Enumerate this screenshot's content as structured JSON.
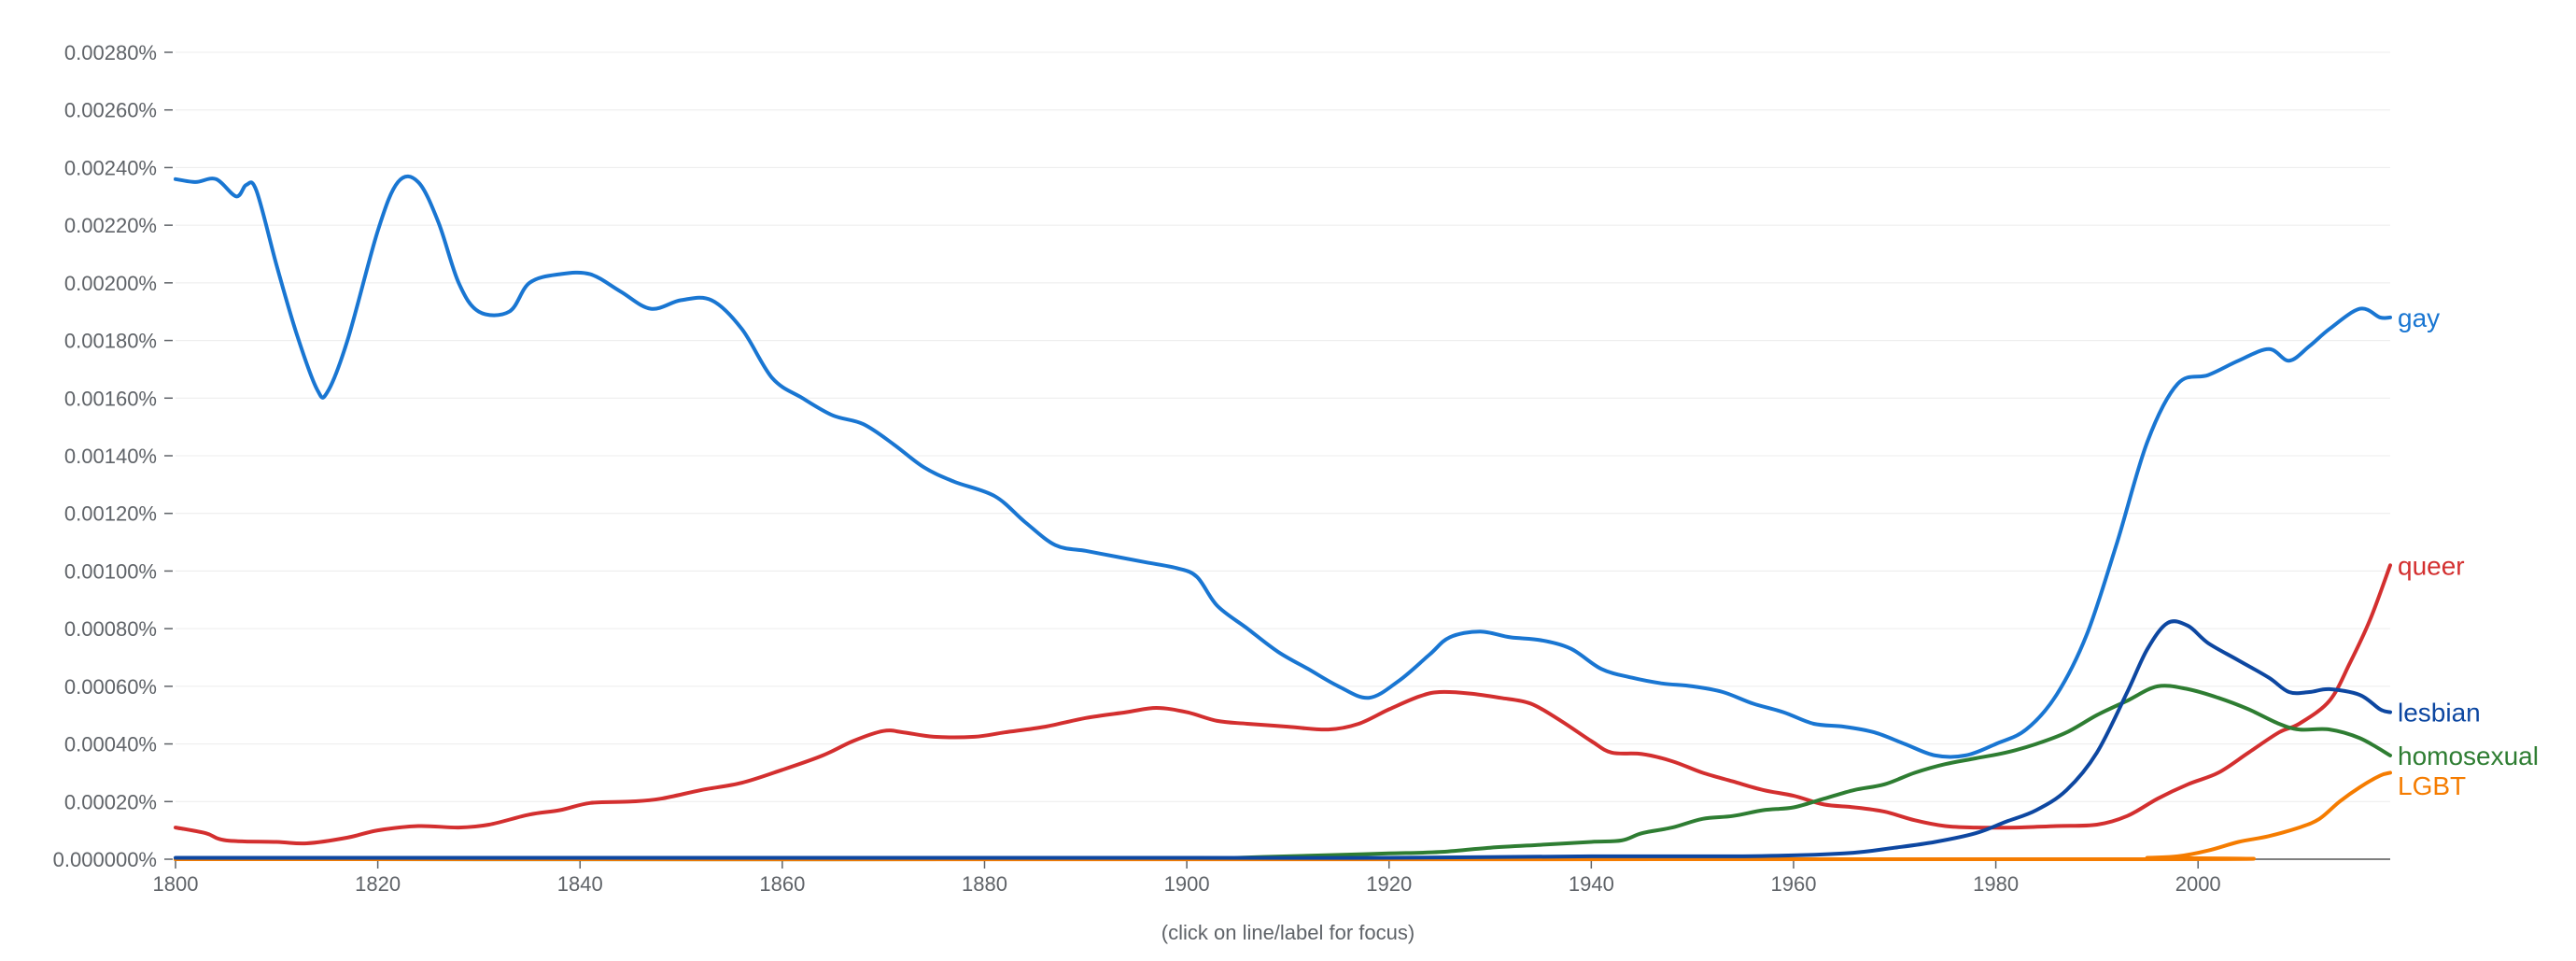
{
  "footer_note": "(click on line/label for focus)",
  "chart_data": {
    "type": "line",
    "x_ticks": [
      "1800",
      "1820",
      "1840",
      "1860",
      "1880",
      "1900",
      "1920",
      "1940",
      "1960",
      "1980",
      "2000"
    ],
    "y_ticks": [
      "0.000000%",
      "0.00020%",
      "0.00040%",
      "0.00060%",
      "0.00080%",
      "0.00100%",
      "0.00120%",
      "0.00140%",
      "0.00160%",
      "0.00180%",
      "0.00200%",
      "0.00220%",
      "0.00240%",
      "0.00260%",
      "0.00280%"
    ],
    "xlim": [
      1800,
      2019
    ],
    "ylim": [
      0,
      0.0028
    ],
    "grid": true,
    "series": [
      {
        "name": "gay",
        "color": "#1976d2",
        "points": [
          [
            1800,
            0.00236
          ],
          [
            1802,
            0.00235
          ],
          [
            1804,
            0.00236
          ],
          [
            1806,
            0.0023
          ],
          [
            1807,
            0.00234
          ],
          [
            1808,
            0.00232
          ],
          [
            1810,
            0.00206
          ],
          [
            1812,
            0.00182
          ],
          [
            1814,
            0.00163
          ],
          [
            1815,
            0.00162
          ],
          [
            1817,
            0.0018
          ],
          [
            1820,
            0.00218
          ],
          [
            1822,
            0.00235
          ],
          [
            1824,
            0.00235
          ],
          [
            1826,
            0.00221
          ],
          [
            1828,
            0.002
          ],
          [
            1830,
            0.0019
          ],
          [
            1833,
            0.0019
          ],
          [
            1835,
            0.002
          ],
          [
            1838,
            0.00203
          ],
          [
            1841,
            0.00203
          ],
          [
            1844,
            0.00197
          ],
          [
            1847,
            0.00191
          ],
          [
            1850,
            0.00194
          ],
          [
            1853,
            0.00194
          ],
          [
            1856,
            0.00184
          ],
          [
            1859,
            0.00167
          ],
          [
            1862,
            0.0016
          ],
          [
            1865,
            0.00154
          ],
          [
            1868,
            0.00151
          ],
          [
            1871,
            0.00144
          ],
          [
            1874,
            0.00136
          ],
          [
            1877,
            0.00131
          ],
          [
            1881,
            0.00126
          ],
          [
            1884,
            0.00117
          ],
          [
            1887,
            0.00109
          ],
          [
            1890,
            0.00107
          ],
          [
            1893,
            0.00105
          ],
          [
            1896,
            0.00103
          ],
          [
            1899,
            0.00101
          ],
          [
            1901,
            0.00098
          ],
          [
            1903,
            0.00088
          ],
          [
            1906,
            0.0008
          ],
          [
            1909,
            0.00072
          ],
          [
            1912,
            0.00066
          ],
          [
            1915,
            0.0006
          ],
          [
            1918,
            0.00056
          ],
          [
            1921,
            0.00062
          ],
          [
            1924,
            0.00071
          ],
          [
            1926,
            0.00077
          ],
          [
            1929,
            0.00079
          ],
          [
            1932,
            0.00077
          ],
          [
            1935,
            0.00076
          ],
          [
            1938,
            0.00073
          ],
          [
            1941,
            0.00066
          ],
          [
            1944,
            0.00063
          ],
          [
            1947,
            0.00061
          ],
          [
            1950,
            0.0006
          ],
          [
            1953,
            0.00058
          ],
          [
            1956,
            0.00054
          ],
          [
            1959,
            0.00051
          ],
          [
            1962,
            0.00047
          ],
          [
            1965,
            0.00046
          ],
          [
            1968,
            0.00044
          ],
          [
            1971,
            0.0004
          ],
          [
            1974,
            0.00036
          ],
          [
            1977,
            0.00036
          ],
          [
            1980,
            0.0004
          ],
          [
            1983,
            0.00045
          ],
          [
            1986,
            0.00057
          ],
          [
            1989,
            0.00078
          ],
          [
            1992,
            0.0011
          ],
          [
            1995,
            0.00145
          ],
          [
            1998,
            0.00165
          ],
          [
            2001,
            0.00168
          ],
          [
            2004,
            0.00173
          ],
          [
            2007,
            0.00177
          ],
          [
            2009,
            0.00173
          ],
          [
            2011,
            0.00178
          ],
          [
            2013,
            0.00184
          ],
          [
            2016,
            0.00191
          ],
          [
            2018,
            0.00188
          ],
          [
            2019,
            0.00188
          ]
        ]
      },
      {
        "name": "queer",
        "color": "#d32f2f",
        "points": [
          [
            1800,
            0.00011
          ],
          [
            1803,
            9e-05
          ],
          [
            1805,
            6.5e-05
          ],
          [
            1810,
            6e-05
          ],
          [
            1813,
            5.5e-05
          ],
          [
            1817,
            7.5e-05
          ],
          [
            1820,
            0.0001
          ],
          [
            1824,
            0.000115
          ],
          [
            1828,
            0.00011
          ],
          [
            1831,
            0.00012
          ],
          [
            1835,
            0.000155
          ],
          [
            1838,
            0.00017
          ],
          [
            1841,
            0.000195
          ],
          [
            1845,
            0.0002
          ],
          [
            1848,
            0.00021
          ],
          [
            1852,
            0.00024
          ],
          [
            1856,
            0.000265
          ],
          [
            1860,
            0.00031
          ],
          [
            1864,
            0.00036
          ],
          [
            1867,
            0.00041
          ],
          [
            1870,
            0.000445
          ],
          [
            1872,
            0.00044
          ],
          [
            1875,
            0.000425
          ],
          [
            1879,
            0.000425
          ],
          [
            1882,
            0.00044
          ],
          [
            1886,
            0.00046
          ],
          [
            1890,
            0.00049
          ],
          [
            1894,
            0.00051
          ],
          [
            1897,
            0.000525
          ],
          [
            1900,
            0.00051
          ],
          [
            1903,
            0.00048
          ],
          [
            1906,
            0.00047
          ],
          [
            1910,
            0.00046
          ],
          [
            1914,
            0.00045
          ],
          [
            1917,
            0.00047
          ],
          [
            1920,
            0.00052
          ],
          [
            1923,
            0.000565
          ],
          [
            1925,
            0.00058
          ],
          [
            1928,
            0.000575
          ],
          [
            1931,
            0.00056
          ],
          [
            1934,
            0.00054
          ],
          [
            1937,
            0.00048
          ],
          [
            1940,
            0.00041
          ],
          [
            1942,
            0.00037
          ],
          [
            1945,
            0.000365
          ],
          [
            1948,
            0.00034
          ],
          [
            1951,
            0.0003
          ],
          [
            1954,
            0.00027
          ],
          [
            1957,
            0.00024
          ],
          [
            1960,
            0.00022
          ],
          [
            1963,
            0.00019
          ],
          [
            1966,
            0.00018
          ],
          [
            1969,
            0.000165
          ],
          [
            1972,
            0.000135
          ],
          [
            1975,
            0.000115
          ],
          [
            1978,
            0.00011
          ],
          [
            1982,
            0.00011
          ],
          [
            1986,
            0.000115
          ],
          [
            1990,
            0.00012
          ],
          [
            1993,
            0.00015
          ],
          [
            1996,
            0.00021
          ],
          [
            1999,
            0.00026
          ],
          [
            2002,
            0.0003
          ],
          [
            2005,
            0.00037
          ],
          [
            2008,
            0.00044
          ],
          [
            2010,
            0.00047
          ],
          [
            2013,
            0.00055
          ],
          [
            2015,
            0.00068
          ],
          [
            2017,
            0.00083
          ],
          [
            2019,
            0.00102
          ]
        ]
      },
      {
        "name": "lesbian",
        "color": "#0d47a1",
        "points": [
          [
            1800,
            5e-06
          ],
          [
            1900,
            5e-06
          ],
          [
            1920,
            5e-06
          ],
          [
            1940,
            1e-05
          ],
          [
            1955,
            1e-05
          ],
          [
            1965,
            2e-05
          ],
          [
            1970,
            4e-05
          ],
          [
            1974,
            6e-05
          ],
          [
            1978,
            9e-05
          ],
          [
            1981,
            0.00013
          ],
          [
            1984,
            0.00017
          ],
          [
            1987,
            0.00024
          ],
          [
            1990,
            0.00037
          ],
          [
            1993,
            0.00058
          ],
          [
            1995,
            0.00073
          ],
          [
            1997,
            0.00082
          ],
          [
            1999,
            0.00081
          ],
          [
            2001,
            0.00075
          ],
          [
            2004,
            0.00069
          ],
          [
            2007,
            0.00063
          ],
          [
            2009,
            0.00058
          ],
          [
            2011,
            0.00058
          ],
          [
            2013,
            0.00059
          ],
          [
            2016,
            0.00057
          ],
          [
            2018,
            0.00052
          ],
          [
            2019,
            0.00051
          ]
        ]
      },
      {
        "name": "homosexual",
        "color": "#2e7d32",
        "points": [
          [
            1800,
            0.0
          ],
          [
            1900,
            0.0
          ],
          [
            1905,
            5e-06
          ],
          [
            1910,
            1e-05
          ],
          [
            1915,
            1.5e-05
          ],
          [
            1920,
            2e-05
          ],
          [
            1925,
            2.5e-05
          ],
          [
            1930,
            4e-05
          ],
          [
            1935,
            5e-05
          ],
          [
            1940,
            6e-05
          ],
          [
            1943,
            6.5e-05
          ],
          [
            1945,
            9e-05
          ],
          [
            1948,
            0.00011
          ],
          [
            1951,
            0.00014
          ],
          [
            1954,
            0.00015
          ],
          [
            1957,
            0.00017
          ],
          [
            1960,
            0.00018
          ],
          [
            1963,
            0.00021
          ],
          [
            1966,
            0.00024
          ],
          [
            1969,
            0.00026
          ],
          [
            1972,
            0.0003
          ],
          [
            1975,
            0.00033
          ],
          [
            1978,
            0.00035
          ],
          [
            1981,
            0.00037
          ],
          [
            1984,
            0.0004
          ],
          [
            1987,
            0.00044
          ],
          [
            1990,
            0.0005
          ],
          [
            1993,
            0.00055
          ],
          [
            1996,
            0.0006
          ],
          [
            1999,
            0.00059
          ],
          [
            2002,
            0.00056
          ],
          [
            2005,
            0.00052
          ],
          [
            2008,
            0.00047
          ],
          [
            2010,
            0.00045
          ],
          [
            2013,
            0.00045
          ],
          [
            2016,
            0.00042
          ],
          [
            2019,
            0.00036
          ]
        ]
      },
      {
        "name": "LGBT",
        "color": "#f57c00",
        "points": [
          [
            1800,
            0.0
          ],
          [
            1990,
            0.0
          ],
          [
            1995,
            5e-06
          ],
          [
            1998,
            1e-05
          ],
          [
            2001,
            3e-05
          ],
          [
            2004,
            6e-05
          ],
          [
            2007,
            8e-05
          ],
          [
            2010,
            0.00011
          ],
          [
            2012,
            0.00014
          ],
          [
            2014,
            0.0002
          ],
          [
            2016,
            0.00025
          ],
          [
            2018,
            0.00029
          ],
          [
            2019,
            0.0003
          ]
        ]
      }
    ]
  }
}
